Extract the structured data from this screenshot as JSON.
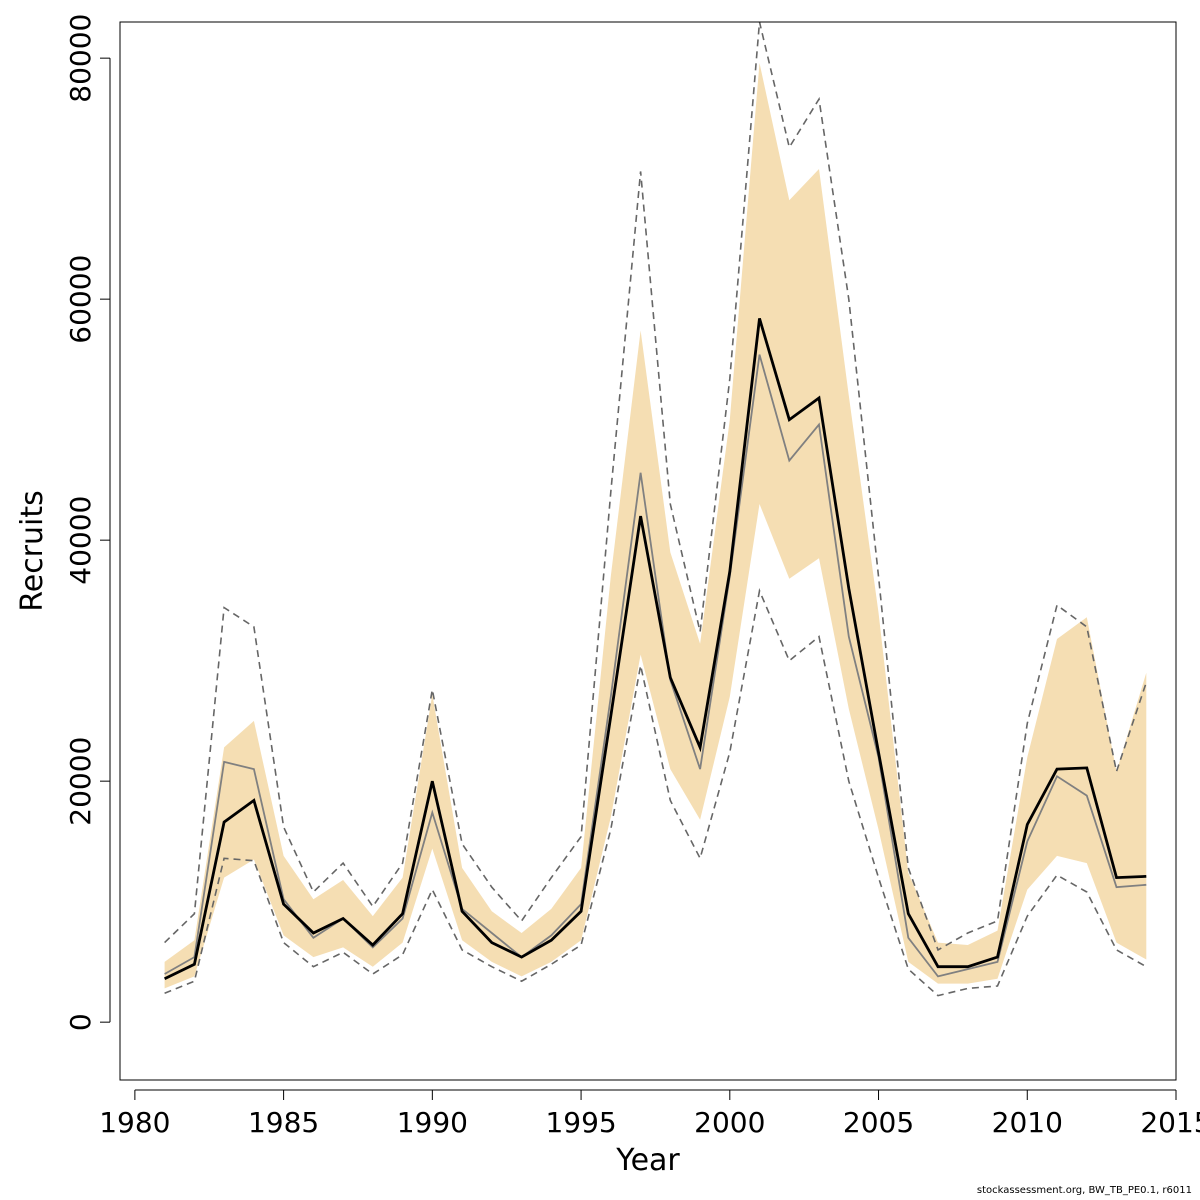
{
  "chart_data": {
    "type": "line",
    "xlabel": "Year",
    "ylabel": "Recruits",
    "xlim": [
      1979.5,
      2015
    ],
    "ylim": [
      -4800,
      83000
    ],
    "xticks": [
      1980,
      1985,
      1990,
      1995,
      2000,
      2005,
      2010,
      2015
    ],
    "yticks": [
      0,
      20000,
      40000,
      60000,
      80000
    ],
    "grid": false,
    "legend": "none",
    "x": [
      1981,
      1982,
      1983,
      1984,
      1985,
      1986,
      1987,
      1988,
      1989,
      1990,
      1991,
      1992,
      1993,
      1994,
      1995,
      1996,
      1997,
      1998,
      1999,
      2000,
      2001,
      2002,
      2003,
      2004,
      2005,
      2006,
      2007,
      2008,
      2009,
      2010,
      2011,
      2012,
      2013,
      2014
    ],
    "series": [
      {
        "role": "band",
        "color": "#f5deb3",
        "lower": [
          2800,
          3800,
          12000,
          13500,
          7200,
          5400,
          6200,
          4600,
          6600,
          14400,
          6800,
          5000,
          3800,
          5000,
          6800,
          17000,
          30500,
          21000,
          16800,
          27000,
          43000,
          36800,
          38500,
          26000,
          16000,
          5000,
          3200,
          3200,
          3600,
          11000,
          13800,
          13200,
          6600,
          5200
        ],
        "upper": [
          5000,
          6800,
          22800,
          25000,
          13800,
          10200,
          11800,
          8800,
          12000,
          27200,
          12800,
          9200,
          7400,
          9400,
          12800,
          37000,
          57400,
          39000,
          31400,
          50000,
          79600,
          68200,
          70800,
          52000,
          34000,
          12400,
          6600,
          6400,
          7600,
          22000,
          31800,
          33600,
          20800,
          29000
        ]
      },
      {
        "role": "upper-dashed",
        "color": "#666666",
        "values": [
          6600,
          9000,
          34400,
          32800,
          16200,
          10800,
          13200,
          9600,
          13200,
          27600,
          14800,
          11200,
          8400,
          12000,
          15400,
          44000,
          70600,
          43000,
          32400,
          53400,
          83000,
          72600,
          76600,
          60000,
          37000,
          12800,
          6000,
          7400,
          8400,
          24800,
          34600,
          32800,
          20800,
          28200
        ]
      },
      {
        "role": "lower-dashed",
        "color": "#666666",
        "values": [
          2400,
          3400,
          13600,
          13400,
          6600,
          4600,
          5800,
          4000,
          5600,
          11000,
          6000,
          4600,
          3400,
          4800,
          6400,
          16000,
          29600,
          18400,
          13600,
          22400,
          35800,
          30000,
          32000,
          20000,
          12000,
          4400,
          2200,
          2800,
          3000,
          8800,
          12200,
          10800,
          6000,
          4600
        ]
      },
      {
        "role": "grey-line",
        "color": "#808080",
        "values": [
          4000,
          5400,
          21600,
          21000,
          10200,
          7000,
          8600,
          6200,
          8600,
          17400,
          9400,
          7400,
          5400,
          7200,
          9800,
          27000,
          45600,
          28400,
          21000,
          37000,
          55400,
          46600,
          49600,
          32000,
          22000,
          7000,
          3800,
          4400,
          5000,
          15000,
          20400,
          18800,
          11200,
          11400
        ]
      },
      {
        "role": "main-line",
        "color": "#000000",
        "values": [
          3600,
          4800,
          16600,
          18400,
          9800,
          7400,
          8600,
          6400,
          9000,
          20000,
          9200,
          6600,
          5400,
          6800,
          9200,
          25400,
          42000,
          28600,
          22800,
          37400,
          58400,
          50000,
          51800,
          36000,
          22400,
          9000,
          4600,
          4600,
          5400,
          16400,
          21000,
          21100,
          12000,
          12100
        ]
      }
    ]
  },
  "footer": {
    "text": "stockassessment.org, BW_TB_PE0.1, r6011"
  }
}
